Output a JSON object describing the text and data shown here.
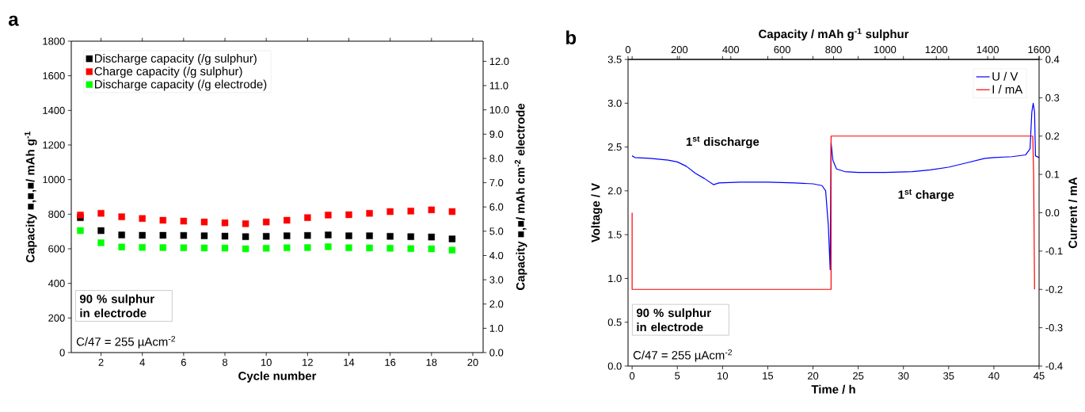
{
  "chart_data": [
    {
      "type": "scatter",
      "title": "a",
      "xlabel": "Cycle number",
      "ylabel": "Capacity ■,■,■/ mAh g$^{-1}$",
      "y2label": "Capacity ■,■/ mAh cm$^{-2}$ electrode",
      "x": [
        1,
        2,
        3,
        4,
        5,
        6,
        7,
        8,
        9,
        10,
        11,
        12,
        13,
        14,
        15,
        16,
        17,
        18,
        19
      ],
      "series": [
        {
          "name": "Discharge capacity (/g sulphur)",
          "color": "#000000",
          "values": [
            780,
            705,
            680,
            678,
            678,
            677,
            675,
            673,
            670,
            672,
            675,
            677,
            680,
            675,
            675,
            672,
            670,
            668,
            657
          ]
        },
        {
          "name": "Charge capacity (/g sulphur)",
          "color": "#ff0000",
          "values": [
            795,
            805,
            785,
            775,
            765,
            760,
            755,
            750,
            745,
            755,
            765,
            780,
            795,
            797,
            805,
            815,
            818,
            825,
            815
          ]
        },
        {
          "name": "Discharge capacity (/g electrode)",
          "color": "#00ff00",
          "values": [
            705,
            635,
            610,
            608,
            607,
            606,
            605,
            604,
            600,
            603,
            606,
            607,
            612,
            606,
            605,
            603,
            601,
            600,
            592
          ]
        }
      ],
      "xlim": [
        0.56,
        20.5
      ],
      "xticks": [
        2,
        4,
        6,
        8,
        10,
        12,
        14,
        16,
        18,
        20
      ],
      "ylim": [
        0,
        1800
      ],
      "yticks": [
        0,
        200,
        400,
        600,
        800,
        1000,
        1200,
        1400,
        1600,
        1800
      ],
      "y2lim": [
        0,
        12.83
      ],
      "y2ticks": [
        {
          "value": 0,
          "label": "0.0"
        },
        {
          "value": 1,
          "label": "1.0"
        },
        {
          "value": 2,
          "label": "2.0"
        },
        {
          "value": 3,
          "label": "3.0"
        },
        {
          "value": 4,
          "label": "4.0"
        },
        {
          "value": 5,
          "label": "5.0"
        },
        {
          "value": 6,
          "label": "6.0"
        },
        {
          "value": 7,
          "label": "7.0"
        },
        {
          "value": 8,
          "label": "8.0"
        },
        {
          "value": 9,
          "label": "9.0"
        },
        {
          "value": 10,
          "label": "10.0"
        },
        {
          "value": 11,
          "label": "11.0"
        },
        {
          "value": 12,
          "label": "12.0"
        }
      ],
      "legend": "top left",
      "marker": "square",
      "annotations": [
        "90 % sulphur in electrode",
        "C/47 = 255 µAcm$^{-2}$"
      ]
    },
    {
      "type": "line",
      "title": "b",
      "xlabel": "Time / h",
      "ylabel": "Voltage / V",
      "y2label": "Current / mA",
      "x2label": "Capacity / mAh g$^{-1}$ sulphur",
      "series": [
        {
          "name": "U / V",
          "color": "#0000ff",
          "x": [
            0,
            0.3,
            2,
            4,
            5,
            6,
            7,
            8,
            9,
            9.3,
            9.6,
            12,
            15,
            18,
            20,
            21,
            21.4,
            21.7,
            21.9,
            22.0,
            22.2,
            22.6,
            23.5,
            25,
            28,
            31,
            33,
            35,
            37,
            39,
            40,
            42,
            43.5,
            44,
            44.2,
            44.35,
            44.5,
            44.6,
            45
          ],
          "values": [
            2.4,
            2.38,
            2.37,
            2.35,
            2.33,
            2.28,
            2.2,
            2.14,
            2.07,
            2.08,
            2.09,
            2.1,
            2.1,
            2.09,
            2.08,
            2.06,
            2.0,
            1.6,
            1.1,
            2.55,
            2.35,
            2.25,
            2.22,
            2.21,
            2.21,
            2.22,
            2.24,
            2.27,
            2.32,
            2.37,
            2.38,
            2.39,
            2.41,
            2.48,
            2.9,
            3.0,
            2.9,
            2.4,
            2.38
          ]
        },
        {
          "name": "I / mA",
          "color": "#ff0000",
          "axis": "y2",
          "x": [
            0,
            0,
            22,
            22,
            44.3,
            44.4,
            44.5
          ],
          "values": [
            0,
            -0.2,
            -0.2,
            0.2,
            0.2,
            0.1,
            -0.2
          ]
        }
      ],
      "xlim": [
        -0.45,
        45
      ],
      "xticks": [
        0,
        5,
        10,
        15,
        20,
        25,
        30,
        35,
        40,
        45
      ],
      "x2lim": [
        0,
        1600
      ],
      "x2ticks": [
        0,
        200,
        400,
        600,
        800,
        1000,
        1200,
        1400,
        1600
      ],
      "ylim": [
        0,
        3.5
      ],
      "yticks": [
        {
          "value": 0,
          "label": "0.0"
        },
        0.5,
        {
          "value": 1,
          "label": "1.0"
        },
        1.5,
        {
          "value": 2,
          "label": "2.0"
        },
        2.5,
        {
          "value": 3,
          "label": "3.0"
        },
        3.5
      ],
      "y2lim": [
        -0.4,
        0.4
      ],
      "y2ticks": [
        -0.4,
        -0.3,
        -0.2,
        -0.1,
        {
          "value": 0,
          "label": "0.0"
        },
        0.1,
        0.2,
        0.3,
        0.4
      ],
      "legend": "top right",
      "marker": "none",
      "line_style": "solid",
      "annotations": [
        "1$^{st}$ discharge",
        "1$^{st}$ charge",
        "90 % sulphur in electrode",
        "C/47 = 255 µAcm$^{-2}$"
      ]
    }
  ]
}
